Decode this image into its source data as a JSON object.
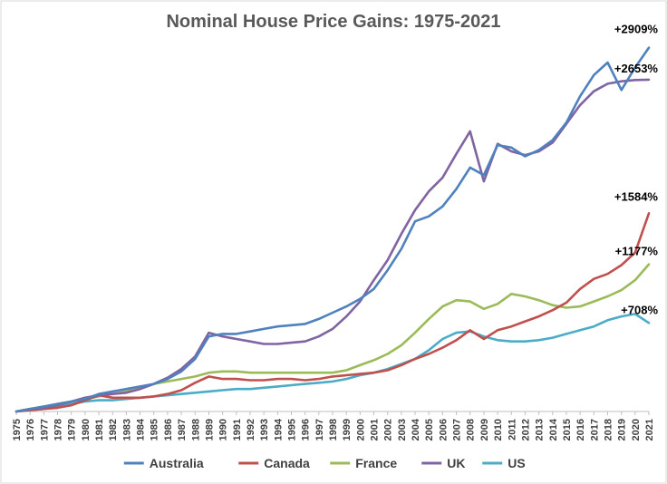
{
  "chart_data": {
    "type": "line",
    "title": "Nominal House Price Gains: 1975-2021",
    "xlabel": "",
    "ylabel": "",
    "x": [
      1975,
      1976,
      1977,
      1978,
      1979,
      1980,
      1981,
      1982,
      1983,
      1984,
      1985,
      1986,
      1987,
      1988,
      1989,
      1990,
      1991,
      1992,
      1993,
      1994,
      1995,
      1996,
      1997,
      1998,
      1999,
      2000,
      2001,
      2002,
      2003,
      2004,
      2005,
      2006,
      2007,
      2008,
      2009,
      2010,
      2011,
      2012,
      2013,
      2014,
      2015,
      2016,
      2017,
      2018,
      2019,
      2020,
      2021
    ],
    "x_tick_labels": [
      "1975",
      "1976",
      "1977",
      "1978",
      "1979",
      "1980",
      "1981",
      "1982",
      "1983",
      "1984",
      "1985",
      "1986",
      "1987",
      "1988",
      "1989",
      "1990",
      "1991",
      "1992",
      "1993",
      "1994",
      "1995",
      "1996",
      "1997",
      "1998",
      "1999",
      "2000",
      "2001",
      "2002",
      "2003",
      "2004",
      "2005",
      "2006",
      "2007",
      "2008",
      "2009",
      "2010",
      "2011",
      "2012",
      "2013",
      "2014",
      "2015",
      "2016",
      "2017",
      "2018",
      "2019",
      "2020",
      "2021"
    ],
    "ylim": [
      0,
      3000
    ],
    "grid": false,
    "legend_position": "bottom",
    "series": [
      {
        "name": "Australia",
        "color": "#4F81BD",
        "end_label": "+2909%",
        "values": [
          0,
          20,
          40,
          60,
          80,
          100,
          140,
          160,
          180,
          200,
          220,
          260,
          320,
          420,
          600,
          620,
          620,
          640,
          660,
          680,
          690,
          700,
          740,
          790,
          840,
          900,
          980,
          1130,
          1300,
          1520,
          1560,
          1640,
          1780,
          1950,
          1890,
          2130,
          2110,
          2040,
          2090,
          2170,
          2310,
          2520,
          2690,
          2790,
          2570,
          2750,
          2909
        ]
      },
      {
        "name": "Canada",
        "color": "#C0504D",
        "end_label": "+1584%",
        "values": [
          0,
          10,
          20,
          30,
          50,
          90,
          130,
          110,
          110,
          110,
          120,
          140,
          170,
          230,
          280,
          260,
          260,
          250,
          250,
          260,
          260,
          250,
          260,
          280,
          290,
          300,
          310,
          330,
          370,
          420,
          460,
          510,
          570,
          650,
          580,
          650,
          680,
          720,
          760,
          810,
          870,
          980,
          1060,
          1100,
          1170,
          1270,
          1584
        ]
      },
      {
        "name": "France",
        "color": "#9BBB59",
        "end_label": "+1177%",
        "values": [
          0,
          20,
          40,
          60,
          80,
          100,
          120,
          140,
          160,
          190,
          220,
          240,
          260,
          280,
          310,
          320,
          320,
          310,
          310,
          310,
          310,
          310,
          310,
          310,
          330,
          370,
          410,
          460,
          530,
          630,
          740,
          840,
          890,
          880,
          820,
          860,
          940,
          920,
          890,
          850,
          830,
          840,
          880,
          920,
          970,
          1050,
          1177
        ]
      },
      {
        "name": "UK",
        "color": "#8064A2",
        "end_label": "+2653%",
        "values": [
          0,
          20,
          30,
          50,
          80,
          110,
          130,
          140,
          150,
          180,
          220,
          270,
          340,
          440,
          630,
          600,
          580,
          560,
          540,
          540,
          550,
          560,
          600,
          660,
          760,
          880,
          1050,
          1210,
          1420,
          1610,
          1760,
          1870,
          2060,
          2240,
          1840,
          2140,
          2080,
          2050,
          2080,
          2150,
          2300,
          2450,
          2560,
          2620,
          2640,
          2650,
          2653
        ]
      },
      {
        "name": "US",
        "color": "#4BACC6",
        "end_label": "+708%",
        "values": [
          0,
          10,
          20,
          40,
          60,
          80,
          90,
          90,
          100,
          110,
          120,
          130,
          140,
          150,
          160,
          170,
          180,
          180,
          190,
          200,
          210,
          220,
          230,
          240,
          260,
          290,
          310,
          340,
          380,
          420,
          490,
          580,
          630,
          640,
          600,
          570,
          560,
          560,
          570,
          590,
          620,
          650,
          680,
          730,
          760,
          780,
          708
        ]
      }
    ]
  }
}
